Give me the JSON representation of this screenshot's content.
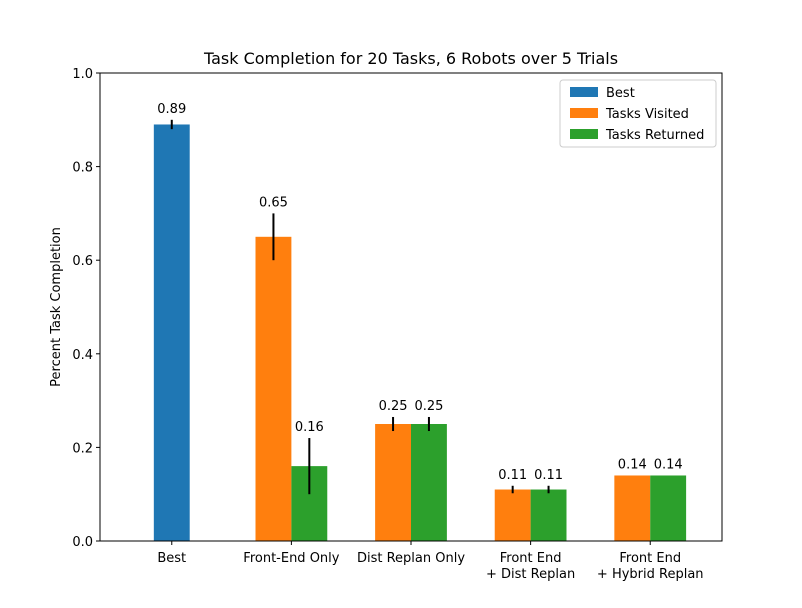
{
  "chart_data": {
    "type": "bar",
    "title": "Task Completion for 20 Tasks, 6 Robots over 5 Trials",
    "ylabel": "Percent Task Completion",
    "xlabel": "",
    "ylim": [
      0,
      1.0
    ],
    "yticks": [
      "0.0",
      "0.2",
      "0.4",
      "0.6",
      "0.8",
      "1.0"
    ],
    "categories": [
      [
        "Best"
      ],
      [
        "Front-End Only"
      ],
      [
        "Dist Replan Only"
      ],
      [
        "Front End",
        "+ Dist Replan"
      ],
      [
        "Front End",
        "+ Hybrid Replan"
      ]
    ],
    "legend_position": "top-right",
    "grid": false,
    "series": [
      {
        "name": "Best",
        "color": "#1f77b4",
        "values": [
          0.89,
          null,
          null,
          null,
          null
        ],
        "errors": [
          0.01,
          null,
          null,
          null,
          null
        ],
        "labels": [
          "0.89",
          "",
          "",
          "",
          ""
        ]
      },
      {
        "name": "Tasks Visited",
        "color": "#ff7f0e",
        "values": [
          null,
          0.65,
          0.25,
          0.11,
          0.14
        ],
        "errors": [
          null,
          0.05,
          0.015,
          0.008,
          0.0
        ],
        "labels": [
          "",
          "0.65",
          "0.25",
          "0.11",
          "0.14"
        ]
      },
      {
        "name": "Tasks Returned",
        "color": "#2ca02c",
        "values": [
          null,
          0.16,
          0.25,
          0.11,
          0.14
        ],
        "errors": [
          null,
          0.06,
          0.015,
          0.008,
          0.0
        ],
        "labels": [
          "",
          "0.16",
          "0.25",
          "0.11",
          "0.14"
        ]
      }
    ]
  }
}
